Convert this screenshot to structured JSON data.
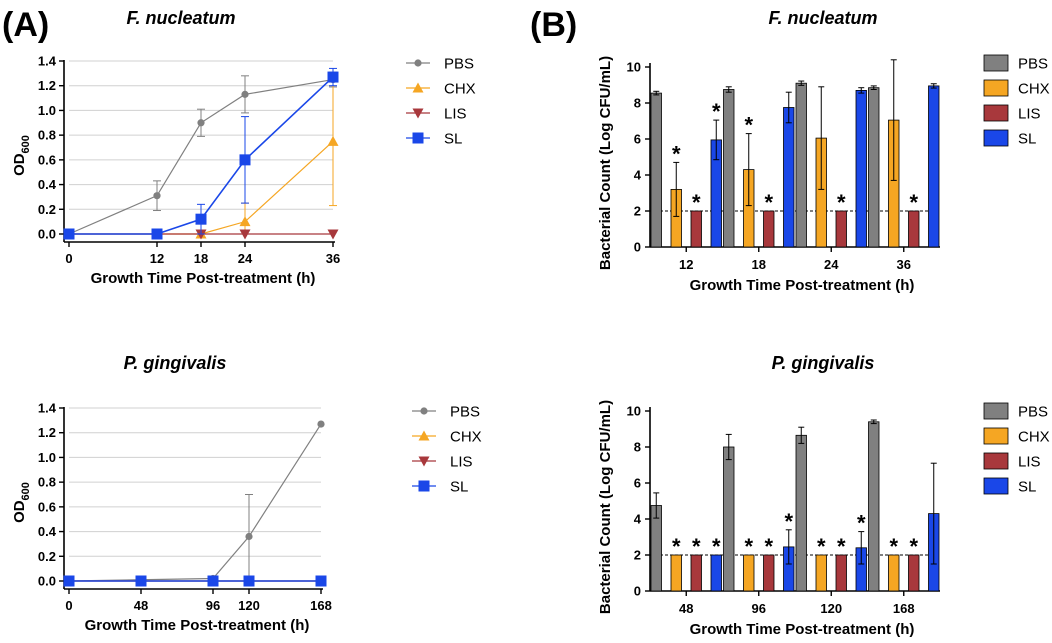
{
  "panel_labels": [
    "(A)",
    "(B)"
  ],
  "legend": [
    "PBS",
    "CHX",
    "LIS",
    "SL"
  ],
  "colors": {
    "PBS": "#808080",
    "CHX": "#f5a623",
    "LIS": "#a8383c",
    "SL": "#1a47e8",
    "axis": "#000000",
    "grid": "#d0d0d0"
  },
  "chart_data": [
    {
      "id": "A1",
      "type": "line",
      "title": "F. nucleatum",
      "xlabel": "Growth Time Post-treatment (h)",
      "ylabel_main": "OD",
      "ylabel_sub": "600",
      "xlim": [
        0,
        36
      ],
      "ylim": [
        0,
        1.4
      ],
      "x_ticks": [
        0,
        12,
        18,
        24,
        36
      ],
      "y_ticks": [
        "0.0",
        "0.2",
        "0.4",
        "0.6",
        "0.8",
        "1.0",
        "1.2",
        "1.4"
      ],
      "grid": true,
      "legend_position": "right",
      "series": [
        {
          "name": "PBS",
          "marker": "circle",
          "x": [
            0,
            12,
            18,
            24,
            36
          ],
          "y": [
            0.0,
            0.31,
            0.9,
            1.13,
            1.25
          ],
          "err": [
            0,
            0.12,
            0.11,
            0.15,
            0.06
          ]
        },
        {
          "name": "CHX",
          "marker": "triangle-up",
          "x": [
            0,
            12,
            18,
            24,
            36
          ],
          "y": [
            0.0,
            0.0,
            0.0,
            0.1,
            0.75
          ],
          "err": [
            0,
            0,
            0,
            0.15,
            0.52
          ]
        },
        {
          "name": "LIS",
          "marker": "triangle-down",
          "x": [
            0,
            12,
            18,
            24,
            36
          ],
          "y": [
            0.0,
            0.0,
            0.0,
            0.0,
            0.0
          ],
          "err": [
            0,
            0,
            0,
            0,
            0
          ]
        },
        {
          "name": "SL",
          "marker": "square",
          "x": [
            0,
            12,
            18,
            24,
            36
          ],
          "y": [
            0.0,
            0.0,
            0.12,
            0.6,
            1.27
          ],
          "err": [
            0,
            0,
            0.12,
            0.35,
            0.07
          ]
        }
      ]
    },
    {
      "id": "A2",
      "type": "line",
      "title": "P. gingivalis",
      "xlabel": "Growth Time Post-treatment (h)",
      "ylabel_main": "OD",
      "ylabel_sub": "600",
      "xlim": [
        0,
        168
      ],
      "ylim": [
        0,
        1.4
      ],
      "x_ticks": [
        0,
        48,
        96,
        120,
        168
      ],
      "y_ticks": [
        "0.0",
        "0.2",
        "0.4",
        "0.6",
        "0.8",
        "1.0",
        "1.2",
        "1.4"
      ],
      "grid": true,
      "legend_position": "right",
      "series": [
        {
          "name": "PBS",
          "marker": "circle",
          "x": [
            0,
            48,
            96,
            120,
            168
          ],
          "y": [
            0.0,
            0.01,
            0.02,
            0.36,
            1.27
          ],
          "err": [
            0,
            0,
            0.02,
            0.34,
            0
          ]
        },
        {
          "name": "CHX",
          "marker": "triangle-up",
          "x": [
            0,
            48,
            96,
            120,
            168
          ],
          "y": [
            0.0,
            0.0,
            0.0,
            0.0,
            0.0
          ],
          "err": [
            0,
            0,
            0,
            0,
            0
          ]
        },
        {
          "name": "LIS",
          "marker": "triangle-down",
          "x": [
            0,
            48,
            96,
            120,
            168
          ],
          "y": [
            0.0,
            0.0,
            0.0,
            0.0,
            0.0
          ],
          "err": [
            0,
            0,
            0,
            0,
            0
          ]
        },
        {
          "name": "SL",
          "marker": "square",
          "x": [
            0,
            48,
            96,
            120,
            168
          ],
          "y": [
            0.0,
            0.0,
            0.0,
            0.0,
            0.0
          ],
          "err": [
            0,
            0,
            0,
            0,
            0
          ]
        }
      ]
    },
    {
      "id": "B1",
      "type": "bar",
      "title": "F. nucleatum",
      "xlabel": "Growth Time Post-treatment (h)",
      "ylabel": "Bacterial Count (Log CFU/mL)",
      "categories": [
        "12",
        "18",
        "24",
        "36"
      ],
      "ylim": [
        0,
        11
      ],
      "y_ticks": [
        "0",
        "2",
        "4",
        "6",
        "8",
        "10"
      ],
      "reference_line": 2,
      "legend_position": "right",
      "series": [
        {
          "name": "PBS",
          "values": [
            8.55,
            8.75,
            9.1,
            8.85
          ],
          "err": [
            0.1,
            0.15,
            0.12,
            0.1
          ],
          "sig": [
            false,
            false,
            false,
            false
          ]
        },
        {
          "name": "CHX",
          "values": [
            3.2,
            4.3,
            6.05,
            7.05
          ],
          "err": [
            1.5,
            2.0,
            2.85,
            3.35
          ],
          "sig": [
            true,
            true,
            false,
            false
          ]
        },
        {
          "name": "LIS",
          "values": [
            2.0,
            2.0,
            2.0,
            2.0
          ],
          "err": [
            0,
            0,
            0,
            0
          ],
          "sig": [
            true,
            true,
            true,
            true
          ]
        },
        {
          "name": "SL",
          "values": [
            5.95,
            7.75,
            8.7,
            8.95
          ],
          "err": [
            1.1,
            0.85,
            0.15,
            0.12
          ],
          "sig": [
            true,
            false,
            false,
            false
          ]
        }
      ],
      "star_label": "*"
    },
    {
      "id": "B2",
      "type": "bar",
      "title": "P. gingivalis",
      "xlabel": "Growth Time Post-treatment (h)",
      "ylabel": "Bacterial Count (Log CFU/mL)",
      "categories": [
        "48",
        "96",
        "120",
        "168"
      ],
      "ylim": [
        0,
        11
      ],
      "y_ticks": [
        "0",
        "2",
        "4",
        "6",
        "8",
        "10"
      ],
      "reference_line": 2,
      "legend_position": "right",
      "series": [
        {
          "name": "PBS",
          "values": [
            4.75,
            8.0,
            8.65,
            9.4
          ],
          "err": [
            0.7,
            0.7,
            0.45,
            0.1
          ],
          "sig": [
            false,
            false,
            false,
            false
          ]
        },
        {
          "name": "CHX",
          "values": [
            2.0,
            2.0,
            2.0,
            2.0
          ],
          "err": [
            0,
            0,
            0,
            0
          ],
          "sig": [
            true,
            true,
            true,
            true
          ]
        },
        {
          "name": "LIS",
          "values": [
            2.0,
            2.0,
            2.0,
            2.0
          ],
          "err": [
            0,
            0,
            0,
            0
          ],
          "sig": [
            true,
            true,
            true,
            true
          ]
        },
        {
          "name": "SL",
          "values": [
            2.0,
            2.45,
            2.4,
            4.3
          ],
          "err": [
            0,
            0.95,
            0.9,
            2.8
          ],
          "sig": [
            true,
            true,
            true,
            false
          ]
        }
      ],
      "star_label": "*"
    }
  ]
}
